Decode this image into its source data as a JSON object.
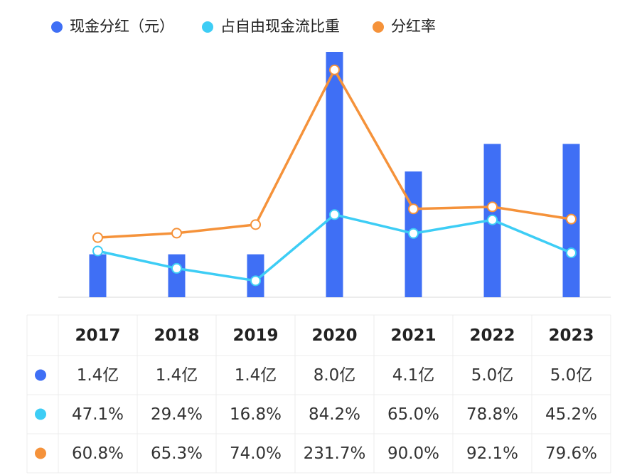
{
  "chart_data": {
    "type": "combo",
    "categories": [
      "2017",
      "2018",
      "2019",
      "2020",
      "2021",
      "2022",
      "2023"
    ],
    "ylim": [
      0,
      8
    ],
    "y2lim": [
      0,
      250
    ],
    "series": [
      {
        "name": "现金分红（元）",
        "type": "bar",
        "color": "#3f6ff5",
        "values": [
          1.4,
          1.4,
          1.4,
          8.0,
          4.1,
          5.0,
          5.0
        ],
        "value_labels": [
          "1.4亿",
          "1.4亿",
          "1.4亿",
          "8.0亿",
          "4.1亿",
          "5.0亿",
          "5.0亿"
        ]
      },
      {
        "name": "占自由现金流比重",
        "type": "line",
        "axis": "y2",
        "color": "#3dcdf5",
        "values": [
          47.1,
          29.4,
          16.8,
          84.2,
          65.0,
          78.8,
          45.2
        ],
        "value_labels": [
          "47.1%",
          "29.4%",
          "16.8%",
          "84.2%",
          "65.0%",
          "78.8%",
          "45.2%"
        ]
      },
      {
        "name": "分红率",
        "type": "line",
        "axis": "y2",
        "color": "#f5923a",
        "values": [
          60.8,
          65.3,
          74.0,
          231.7,
          90.0,
          92.1,
          79.6
        ],
        "value_labels": [
          "60.8%",
          "65.3%",
          "74.0%",
          "231.7%",
          "90.0%",
          "92.1%",
          "79.6%"
        ]
      }
    ]
  }
}
